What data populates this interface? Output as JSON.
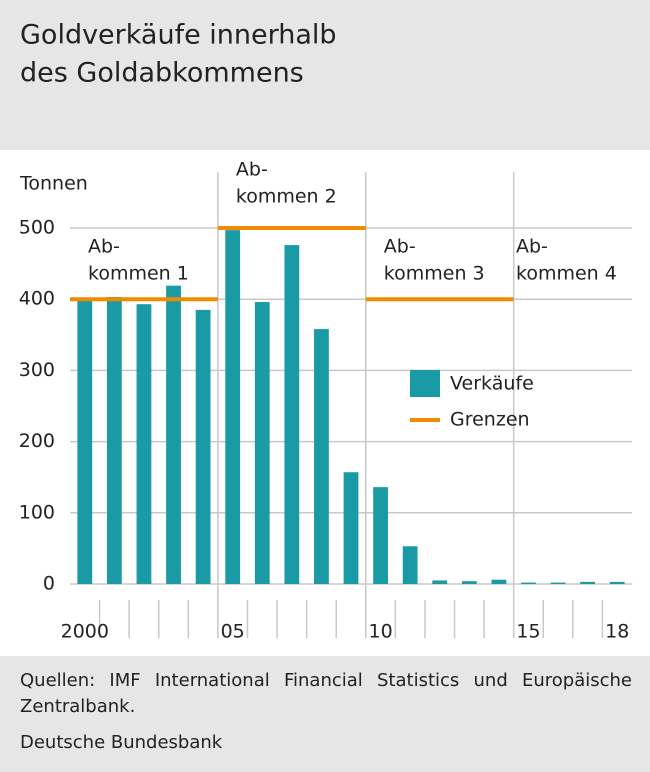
{
  "chart_data": {
    "type": "bar",
    "title": [
      "Goldverkäufe innerhalb",
      "des Goldabkommens"
    ],
    "y_label": "Tonnen",
    "categories": [
      "2000",
      null,
      null,
      null,
      null,
      "05",
      null,
      null,
      null,
      null,
      "10",
      null,
      null,
      null,
      null,
      "15",
      null,
      null,
      "18"
    ],
    "series": [
      {
        "name": "Verkäufe",
        "color": "#1a9aa5",
        "values": [
          402,
          403,
          393,
          419,
          385,
          497,
          396,
          476,
          358,
          157,
          136,
          53,
          5,
          4,
          6,
          2,
          2,
          3,
          3
        ]
      }
    ],
    "limits": {
      "name": "Grenzen",
      "color": "#f08a00",
      "agreements": [
        {
          "label": [
            "Ab-",
            "kommen 1"
          ],
          "value": 400
        },
        {
          "label": [
            "Ab-",
            "kommen 2"
          ],
          "value": 500
        },
        {
          "label": [
            "Ab-",
            "kommen 3"
          ],
          "value": 400
        },
        {
          "label": [
            "Ab-",
            "kommen 4"
          ],
          "value": null
        }
      ]
    },
    "ylim": [
      0,
      500
    ],
    "yticks": [
      0,
      100,
      200,
      300,
      400,
      500
    ],
    "grid": true
  },
  "footer": {
    "source": "Quellen: IMF International Financial Statistics und Europäische Zentralbank.",
    "publisher": "Deutsche Bundesbank"
  }
}
